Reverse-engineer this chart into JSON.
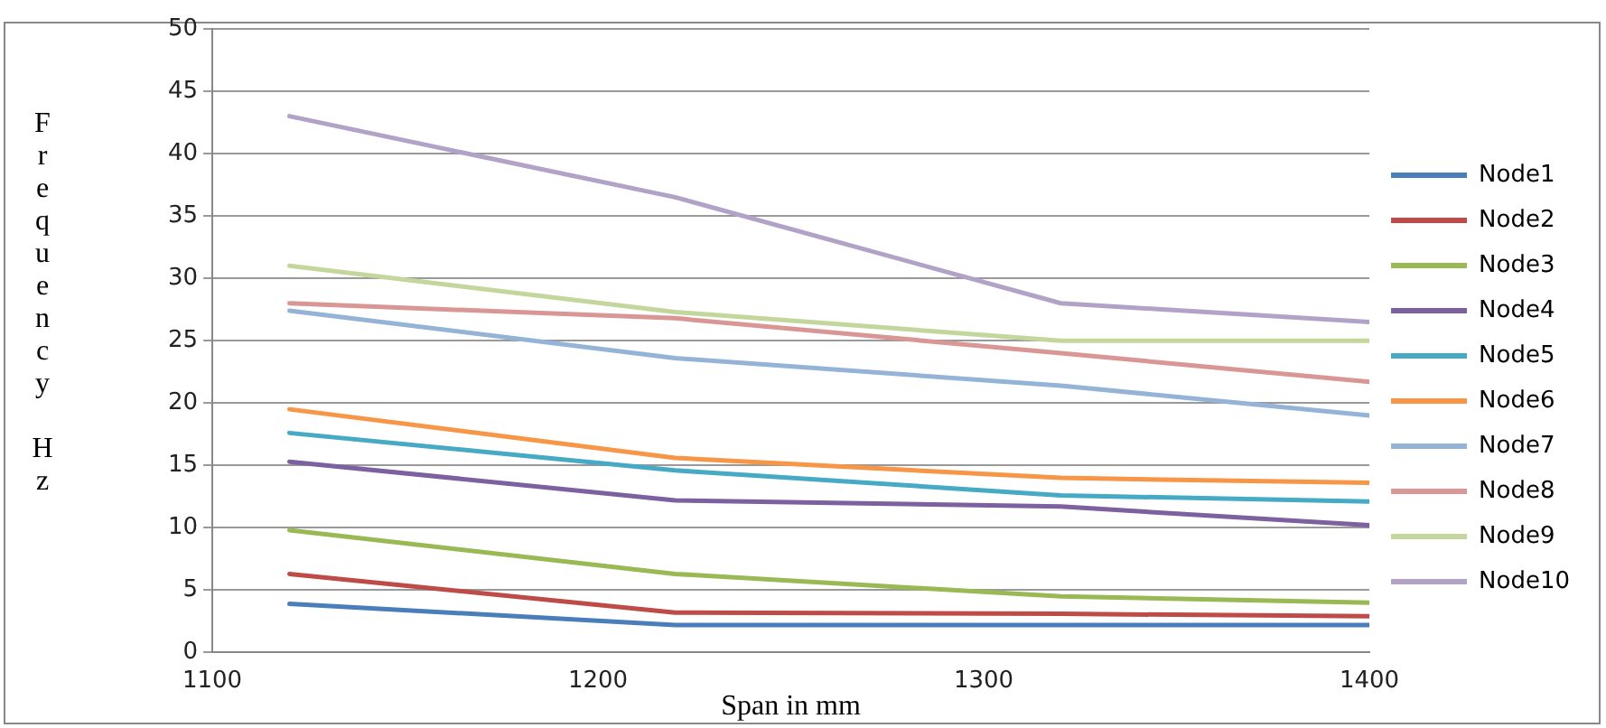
{
  "chart_data": {
    "type": "line",
    "xlabel": "Span in mm",
    "ylabel": "Frequency Hz",
    "x": [
      1120,
      1220,
      1320,
      1400
    ],
    "xlim": [
      1100,
      1400
    ],
    "xticks": [
      1100,
      1200,
      1300,
      1400
    ],
    "ylim": [
      0,
      50
    ],
    "yticks": [
      0,
      5,
      10,
      15,
      20,
      25,
      30,
      35,
      40,
      45,
      50
    ],
    "grid": "y",
    "legend": "right",
    "marker": "none",
    "series": [
      {
        "name": "Node1",
        "color": "#4a7ebb",
        "values": [
          3.9,
          2.2,
          2.2,
          2.2
        ]
      },
      {
        "name": "Node2",
        "color": "#be4b48",
        "values": [
          6.3,
          3.2,
          3.1,
          2.9
        ]
      },
      {
        "name": "Node3",
        "color": "#98b954",
        "values": [
          9.8,
          6.3,
          4.5,
          4.0
        ]
      },
      {
        "name": "Node4",
        "color": "#7d60a0",
        "values": [
          15.3,
          12.2,
          11.7,
          10.2
        ]
      },
      {
        "name": "Node5",
        "color": "#46aac5",
        "values": [
          17.6,
          14.6,
          12.6,
          12.1
        ]
      },
      {
        "name": "Node6",
        "color": "#f79646",
        "values": [
          19.5,
          15.6,
          14.0,
          13.6
        ]
      },
      {
        "name": "Node7",
        "color": "#95b3d7",
        "values": [
          27.4,
          23.6,
          21.4,
          19.0
        ]
      },
      {
        "name": "Node8",
        "color": "#d99694",
        "values": [
          28.0,
          26.8,
          24.0,
          21.7
        ]
      },
      {
        "name": "Node9",
        "color": "#c3d69b",
        "values": [
          31.0,
          27.3,
          25.0,
          25.0
        ]
      },
      {
        "name": "Node10",
        "color": "#b3a2c7",
        "values": [
          43.0,
          36.5,
          28.0,
          26.5
        ]
      }
    ]
  }
}
